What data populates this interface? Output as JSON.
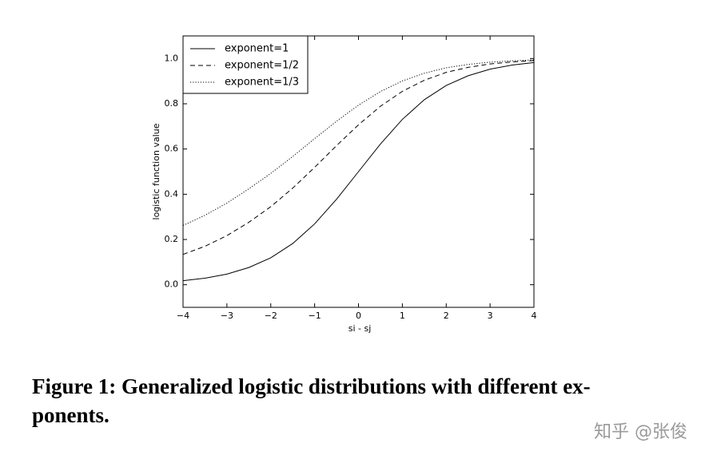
{
  "chart_data": {
    "type": "line",
    "xlabel": "si - sj",
    "ylabel": "logistic function value",
    "x": [
      -4,
      -3.5,
      -3,
      -2.5,
      -2,
      -1.5,
      -1,
      -0.5,
      0,
      0.5,
      1,
      1.5,
      2,
      2.5,
      3,
      3.5,
      4
    ],
    "series": [
      {
        "name": "exponent=1",
        "color": "#000000",
        "style": "solid",
        "values": [
          0.018,
          0.029,
          0.047,
          0.076,
          0.119,
          0.182,
          0.269,
          0.378,
          0.5,
          0.622,
          0.731,
          0.818,
          0.881,
          0.924,
          0.953,
          0.971,
          0.982
        ]
      },
      {
        "name": "exponent=1/2",
        "color": "#000000",
        "style": "dashed",
        "values": [
          0.134,
          0.17,
          0.217,
          0.276,
          0.345,
          0.427,
          0.519,
          0.615,
          0.707,
          0.789,
          0.855,
          0.904,
          0.939,
          0.961,
          0.976,
          0.985,
          0.991
        ]
      },
      {
        "name": "exponent=1/3",
        "color": "#000000",
        "style": "dotted",
        "values": [
          0.262,
          0.307,
          0.361,
          0.424,
          0.492,
          0.567,
          0.646,
          0.723,
          0.794,
          0.854,
          0.901,
          0.935,
          0.959,
          0.974,
          0.984,
          0.99,
          0.994
        ]
      }
    ],
    "xlim": [
      -4,
      4
    ],
    "xticks": [
      {
        "value": -4,
        "label": "−4"
      },
      {
        "value": -3,
        "label": "−3"
      },
      {
        "value": -2,
        "label": "−2"
      },
      {
        "value": -1,
        "label": "−1"
      },
      0,
      1,
      2,
      3,
      4
    ],
    "ylim": [
      -0.1,
      1.1
    ],
    "yticks": [
      {
        "value": 0,
        "label": "0.0"
      },
      0.2,
      0.4,
      0.6,
      0.8,
      {
        "value": 1,
        "label": "1.0"
      }
    ],
    "legend": "upper left",
    "grid": false
  },
  "caption": [
    "Figure 1: Generalized logistic distributions with different ex-",
    "ponents."
  ],
  "watermark": "知乎 @张俊"
}
